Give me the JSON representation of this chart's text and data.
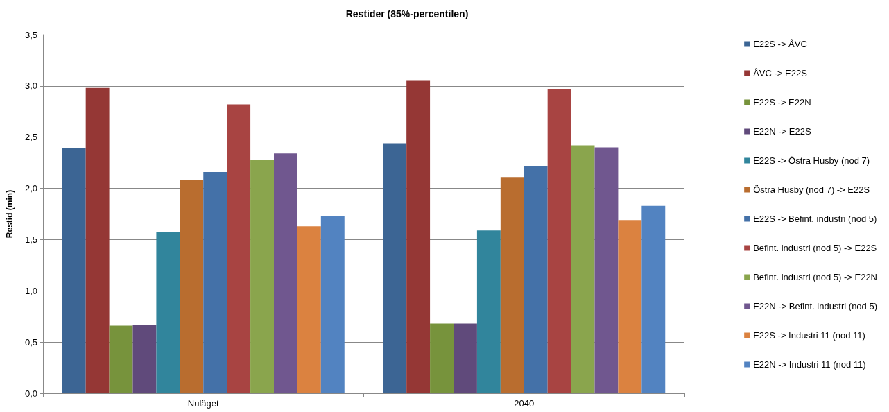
{
  "chart_data": {
    "type": "bar",
    "title": "Restider (85%-percentilen)",
    "ylabel": "Restid (min)",
    "categories": [
      "Nuläget",
      "2040"
    ],
    "series": [
      {
        "name": "E22S -> ÅVC",
        "color": "#3c6594",
        "values": [
          2.39,
          2.44
        ]
      },
      {
        "name": "ÅVC -> E22S",
        "color": "#953735",
        "values": [
          2.98,
          3.05
        ]
      },
      {
        "name": "E22S -> E22N",
        "color": "#77933c",
        "values": [
          0.66,
          0.68
        ]
      },
      {
        "name": "E22N -> E22S",
        "color": "#604a7b",
        "values": [
          0.67,
          0.68
        ]
      },
      {
        "name": "E22S -> Östra Husby (nod 7)",
        "color": "#31859c",
        "values": [
          1.57,
          1.59
        ]
      },
      {
        "name": "Östra Husby (nod 7) -> E22S",
        "color": "#b96d2f",
        "values": [
          2.08,
          2.11
        ]
      },
      {
        "name": "E22S -> Befint. industri (nod 5)",
        "color": "#4471a8",
        "values": [
          2.16,
          2.22
        ]
      },
      {
        "name": "Befint. industri (nod 5) -> E22S",
        "color": "#a84442",
        "values": [
          2.82,
          2.97
        ]
      },
      {
        "name": "Befint. industri (nod 5) -> E22N",
        "color": "#8aa54d",
        "values": [
          2.28,
          2.42
        ]
      },
      {
        "name": "E22N -> Befint. industri (nod 5)",
        "color": "#70578f",
        "values": [
          2.34,
          2.4
        ]
      },
      {
        "name": "E22S -> Industri 11 (nod 11)",
        "color": "#db8240",
        "values": [
          1.63,
          1.69
        ]
      },
      {
        "name": "E22N -> Industri 11 (nod 11)",
        "color": "#5283c1",
        "values": [
          1.73,
          1.83
        ]
      }
    ],
    "ylim": [
      0,
      3.5
    ],
    "yticks": [
      {
        "value": 0,
        "label": "0,0"
      },
      {
        "value": 0.5,
        "label": "0,5"
      },
      {
        "value": 1,
        "label": "1,0"
      },
      {
        "value": 1.5,
        "label": "1,5"
      },
      {
        "value": 2,
        "label": "2,0"
      },
      {
        "value": 2.5,
        "label": "2,5"
      },
      {
        "value": 3,
        "label": "3,0"
      },
      {
        "value": 3.5,
        "label": "3,5"
      }
    ],
    "grid": "y",
    "legend": "right"
  }
}
